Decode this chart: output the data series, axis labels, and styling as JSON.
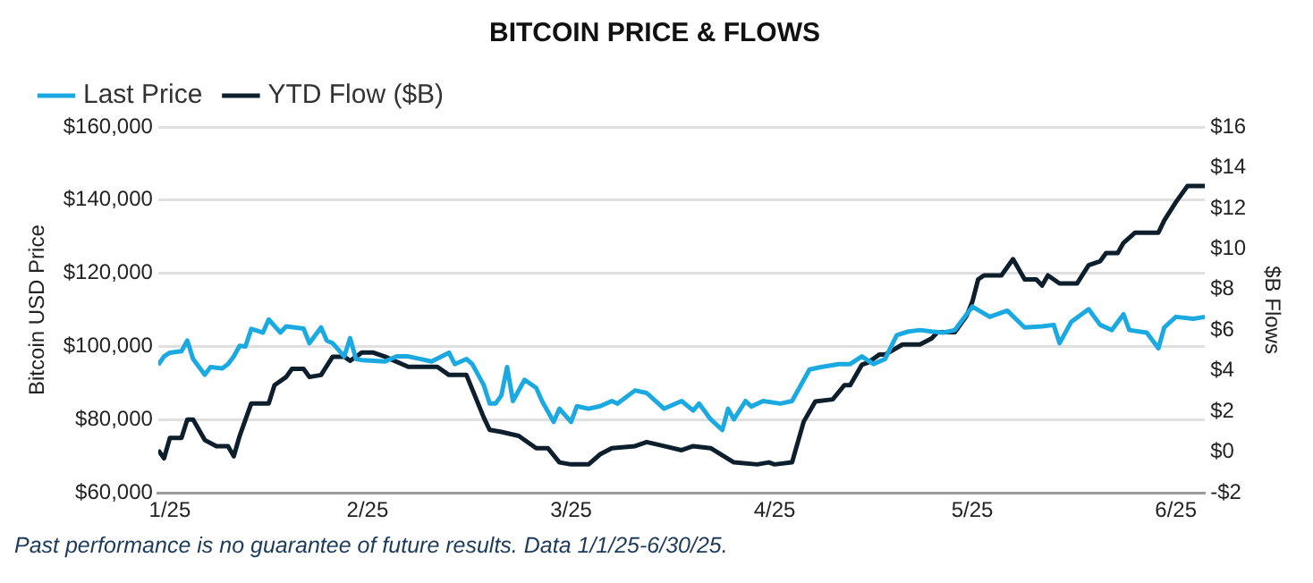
{
  "chart_data": {
    "type": "line",
    "title": "BITCOIN PRICE & FLOWS",
    "ylabel": "Bitcoin USD Price",
    "y2label": "$B Flows",
    "legend": "top left",
    "grid": "y",
    "marker": "none",
    "xlim": [
      "2025-01-01",
      "2025-06-30"
    ],
    "xticks": [
      {
        "value": "2025-01-03",
        "label": "1/25"
      },
      {
        "value": "2025-02-06",
        "label": "2/25"
      },
      {
        "value": "2025-03-13",
        "label": "3/25"
      },
      {
        "value": "2025-04-17",
        "label": "4/25"
      },
      {
        "value": "2025-05-21",
        "label": "5/25"
      },
      {
        "value": "2025-06-25",
        "label": "6/25"
      }
    ],
    "ylim": [
      60000,
      160000
    ],
    "yticks": [
      {
        "value": 60000,
        "label": "$60,000"
      },
      {
        "value": 80000,
        "label": "$80,000"
      },
      {
        "value": 100000,
        "label": "$100,000"
      },
      {
        "value": 120000,
        "label": "$120,000"
      },
      {
        "value": 140000,
        "label": "$140,000"
      },
      {
        "value": 160000,
        "label": "$160,000"
      }
    ],
    "y2lim": [
      -2,
      16
    ],
    "y2ticks": [
      {
        "value": -2,
        "label": "-$2"
      },
      {
        "value": 0,
        "label": "$0"
      },
      {
        "value": 2,
        "label": "$2"
      },
      {
        "value": 4,
        "label": "$4"
      },
      {
        "value": 6,
        "label": "$6"
      },
      {
        "value": 8,
        "label": "$8"
      },
      {
        "value": 10,
        "label": "$10"
      },
      {
        "value": 12,
        "label": "$12"
      },
      {
        "value": 14,
        "label": "$14"
      },
      {
        "value": 16,
        "label": "$16"
      }
    ],
    "series": [
      {
        "name": "Last Price",
        "color": "#1ba9e1",
        "x": [
          "2025-01-01",
          "2025-01-02",
          "2025-01-03",
          "2025-01-05",
          "2025-01-06",
          "2025-01-07",
          "2025-01-09",
          "2025-01-10",
          "2025-01-12",
          "2025-01-13",
          "2025-01-14",
          "2025-01-15",
          "2025-01-16",
          "2025-01-17",
          "2025-01-19",
          "2025-01-20",
          "2025-01-22",
          "2025-01-23",
          "2025-01-26",
          "2025-01-27",
          "2025-01-29",
          "2025-01-30",
          "2025-01-31",
          "2025-02-02",
          "2025-02-03",
          "2025-02-04",
          "2025-02-05",
          "2025-02-09",
          "2025-02-11",
          "2025-02-13",
          "2025-02-15",
          "2025-02-17",
          "2025-02-20",
          "2025-02-21",
          "2025-02-23",
          "2025-02-24",
          "2025-02-26",
          "2025-02-27",
          "2025-02-28",
          "2025-03-01",
          "2025-03-02",
          "2025-03-03",
          "2025-03-05",
          "2025-03-07",
          "2025-03-08",
          "2025-03-10",
          "2025-03-11",
          "2025-03-13",
          "2025-03-14",
          "2025-03-16",
          "2025-03-18",
          "2025-03-20",
          "2025-03-21",
          "2025-03-24",
          "2025-03-26",
          "2025-03-29",
          "2025-04-01",
          "2025-04-03",
          "2025-04-04",
          "2025-04-06",
          "2025-04-08",
          "2025-04-09",
          "2025-04-10",
          "2025-04-12",
          "2025-04-13",
          "2025-04-15",
          "2025-04-18",
          "2025-04-20",
          "2025-04-23",
          "2025-04-25",
          "2025-04-28",
          "2025-04-30",
          "2025-05-02",
          "2025-05-04",
          "2025-05-06",
          "2025-05-08",
          "2025-05-10",
          "2025-05-12",
          "2025-05-14",
          "2025-05-16",
          "2025-05-18",
          "2025-05-21",
          "2025-05-24",
          "2025-05-27",
          "2025-05-30",
          "2025-06-02",
          "2025-06-04",
          "2025-06-05",
          "2025-06-07",
          "2025-06-10",
          "2025-06-12",
          "2025-06-14",
          "2025-06-16",
          "2025-06-17",
          "2025-06-20",
          "2025-06-22",
          "2025-06-23",
          "2025-06-25",
          "2025-06-28",
          "2025-06-30"
        ],
        "values": [
          95000,
          97300,
          98300,
          98700,
          101600,
          96600,
          92300,
          94400,
          94000,
          95200,
          97300,
          100200,
          100000,
          104800,
          103800,
          107400,
          103800,
          105500,
          104900,
          100900,
          105200,
          101600,
          100900,
          97300,
          102300,
          96600,
          96300,
          95900,
          97300,
          97300,
          96600,
          95900,
          98300,
          95200,
          96600,
          95200,
          89400,
          84400,
          84400,
          86600,
          94400,
          85100,
          90900,
          88700,
          85100,
          79400,
          83000,
          79400,
          83700,
          83000,
          83700,
          85100,
          84400,
          88000,
          87300,
          83000,
          85100,
          82500,
          84400,
          80100,
          77200,
          83000,
          80100,
          85100,
          83600,
          85100,
          84400,
          85100,
          93700,
          94400,
          95200,
          95200,
          97300,
          95200,
          96600,
          103100,
          104100,
          104500,
          104100,
          103800,
          104500,
          110900,
          108100,
          109800,
          105200,
          105500,
          105900,
          100900,
          106700,
          110200,
          105900,
          104500,
          108800,
          104500,
          103800,
          99500,
          105200,
          108100,
          107600,
          108100
        ]
      },
      {
        "name": "YTD Flow ($B)",
        "color": "#0d1f2d",
        "axis": "y2",
        "x": [
          "2025-01-01",
          "2025-01-02",
          "2025-01-03",
          "2025-01-05",
          "2025-01-06",
          "2025-01-07",
          "2025-01-09",
          "2025-01-11",
          "2025-01-13",
          "2025-01-14",
          "2025-01-15",
          "2025-01-17",
          "2025-01-20",
          "2025-01-21",
          "2025-01-23",
          "2025-01-24",
          "2025-01-26",
          "2025-01-27",
          "2025-01-29",
          "2025-01-31",
          "2025-02-02",
          "2025-02-03",
          "2025-02-05",
          "2025-02-07",
          "2025-02-09",
          "2025-02-13",
          "2025-02-18",
          "2025-02-20",
          "2025-02-23",
          "2025-02-26",
          "2025-02-27",
          "2025-03-01",
          "2025-03-04",
          "2025-03-07",
          "2025-03-09",
          "2025-03-11",
          "2025-03-13",
          "2025-03-16",
          "2025-03-18",
          "2025-03-20",
          "2025-03-24",
          "2025-03-26",
          "2025-03-29",
          "2025-04-01",
          "2025-04-03",
          "2025-04-06",
          "2025-04-10",
          "2025-04-14",
          "2025-04-16",
          "2025-04-17",
          "2025-04-20",
          "2025-04-22",
          "2025-04-24",
          "2025-04-27",
          "2025-04-29",
          "2025-04-30",
          "2025-05-02",
          "2025-05-03",
          "2025-05-05",
          "2025-05-06",
          "2025-05-09",
          "2025-05-12",
          "2025-05-14",
          "2025-05-15",
          "2025-05-18",
          "2025-05-20",
          "2025-05-21",
          "2025-05-22",
          "2025-05-23",
          "2025-05-26",
          "2025-05-28",
          "2025-05-30",
          "2025-06-01",
          "2025-06-02",
          "2025-06-03",
          "2025-06-05",
          "2025-06-08",
          "2025-06-10",
          "2025-06-12",
          "2025-06-13",
          "2025-06-15",
          "2025-06-16",
          "2025-06-18",
          "2025-06-22",
          "2025-06-23",
          "2025-06-25",
          "2025-06-27",
          "2025-06-30"
        ],
        "values": [
          0.1,
          -0.3,
          0.7,
          0.7,
          1.6,
          1.6,
          0.6,
          0.3,
          0.3,
          -0.2,
          0.8,
          2.4,
          2.4,
          3.3,
          3.7,
          4.1,
          4.1,
          3.7,
          3.8,
          4.7,
          4.7,
          4.5,
          4.9,
          4.9,
          4.7,
          4.2,
          4.2,
          3.8,
          3.8,
          1.7,
          1.1,
          1.0,
          0.8,
          0.2,
          0.2,
          -0.5,
          -0.6,
          -0.6,
          -0.1,
          0.2,
          0.3,
          0.5,
          0.3,
          0.1,
          0.3,
          0.2,
          -0.5,
          -0.6,
          -0.5,
          -0.6,
          -0.5,
          1.5,
          2.5,
          2.6,
          3.3,
          3.3,
          4.3,
          4.4,
          4.8,
          4.8,
          5.3,
          5.3,
          5.6,
          5.9,
          5.9,
          6.7,
          7.4,
          8.5,
          8.7,
          8.7,
          9.5,
          8.5,
          8.5,
          8.2,
          8.7,
          8.3,
          8.3,
          9.2,
          9.4,
          9.8,
          9.8,
          10.3,
          10.8,
          10.8,
          11.4,
          12.3,
          13.1,
          13.1
        ]
      }
    ],
    "annotations": [
      "Past performance is no guarantee of future results. Data 1/1/25-6/30/25."
    ]
  }
}
